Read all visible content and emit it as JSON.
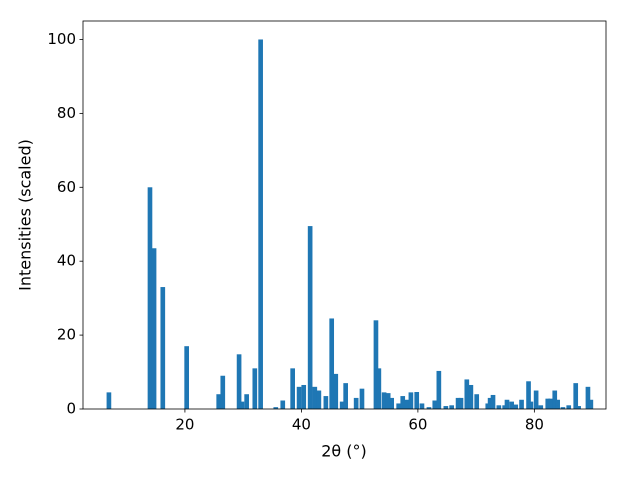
{
  "chart_data": {
    "type": "bar",
    "x_label": "2θ (°)",
    "y_label": "Intensities (scaled)",
    "color": "#1f77b4",
    "x": [
      6.95,
      14.0,
      14.7,
      16.2,
      20.3,
      25.8,
      26.5,
      29.3,
      29.8,
      30.6,
      32.0,
      33.0,
      35.6,
      36.8,
      38.5,
      39.6,
      40.4,
      41.5,
      42.3,
      43.0,
      44.2,
      45.2,
      45.9,
      47.0,
      47.6,
      49.4,
      50.4,
      52.8,
      53.3,
      54.2,
      54.9,
      55.5,
      56.7,
      57.4,
      58.1,
      58.8,
      59.8,
      60.7,
      61.9,
      62.9,
      63.6,
      64.8,
      65.8,
      66.9,
      67.4,
      68.4,
      69.1,
      70.1,
      72.0,
      72.4,
      72.9,
      73.9,
      74.9,
      75.3,
      76.1,
      76.8,
      77.8,
      79.0,
      79.4,
      80.3,
      81.1,
      82.3,
      82.8,
      83.5,
      84.0,
      84.9,
      85.9,
      87.1,
      87.6,
      89.2,
      89.7
    ],
    "values": [
      4.5,
      60,
      43.5,
      33,
      17,
      4,
      9,
      14.8,
      2,
      4,
      11,
      100,
      0.5,
      2.3,
      11,
      6,
      6.5,
      49.5,
      6,
      5,
      3.5,
      24.5,
      9.5,
      2,
      7,
      3,
      5.5,
      24,
      11,
      4.5,
      4.3,
      3,
      1.5,
      3.5,
      2.5,
      4.5,
      4.6,
      1.5,
      0.5,
      2.3,
      10.3,
      0.8,
      1,
      3,
      3,
      8,
      6.5,
      4,
      1.5,
      3,
      3.8,
      1,
      1,
      2.5,
      2,
      1.2,
      2.5,
      7.5,
      2,
      5,
      1,
      2.8,
      2.8,
      5,
      2.5,
      0.5,
      1,
      7,
      0.8,
      6,
      2.5
    ],
    "xlim": [
      2.5,
      92.3
    ],
    "ylim": [
      0,
      105
    ],
    "xticks": [
      20,
      40,
      60,
      80
    ],
    "yticks": [
      0,
      20,
      40,
      60,
      80,
      100
    ]
  }
}
